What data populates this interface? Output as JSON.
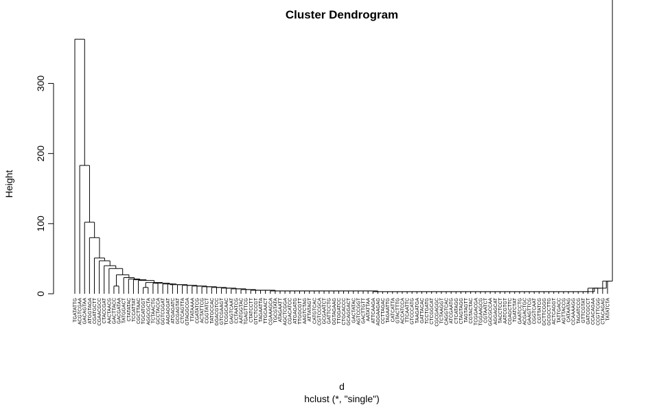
{
  "chart_data": {
    "type": "dendrogram",
    "title": "Cluster Dendrogram",
    "ylabel": "Height",
    "xlabel": "d",
    "sub": "hclust (*, \"single\")",
    "ylim": [
      0,
      370
    ],
    "yticks": [
      0,
      100,
      200,
      300
    ],
    "leaves": [
      "TGATATTG",
      "ACGTCGAA",
      "GACAGTAA",
      "ATGGTAGA",
      "CGATGCTT",
      "CGAACGCC",
      "CTACCGAT",
      "AACTAACG",
      "GACTTACC",
      "GACGATAA",
      "TATGGACT",
      "CTATATAC",
      "TCCATTAT",
      "CGCTTAAC",
      "TGCATGGT",
      "AGGCGCTA",
      "TCTAACTG",
      "GCCTACCA",
      "GGTCGGAT",
      "AAGAGGAT",
      "ATGAGATC",
      "GCGAGTAT",
      "CTCAGTTA",
      "GTAGGCGA",
      "TTATAAAA",
      "CGATATCG",
      "ACTATTCG",
      "CGGTATCT",
      "TATGCCAC",
      "GGACGTCC",
      "GTCGAAGT",
      "TCGGCAAC",
      "GAGTCAAT",
      "CCTAATCG",
      "AATGGTAC",
      "TGAGTTCG",
      "CTATCCTT",
      "GTCTCCGT",
      "TAGAATTA",
      "TTGCAACT",
      "CGAAAGCA",
      "TGCGTATA",
      "ATAGAATT",
      "AGCTCGGA",
      "CGACATCC",
      "ATGAGATG",
      "TTGGCGTT",
      "AAGTCTAG",
      "ATTATAGT",
      "CATGTCAC",
      "CGTCCGCA",
      "GCGAATCT",
      "GATTCCTG",
      "GGTAGAAG",
      "TTGGATCC",
      "CTGCACCC",
      "GCAGGACT",
      "GACTATAC",
      "AGTCCGGT",
      "GACTTGTT",
      "AATATTAA",
      "ATTCAAGA",
      "AGGAAGAG",
      "CCTTAGAC",
      "TAGAATTG",
      "CATCATTA",
      "GTACTTTG",
      "ACCATCCA",
      "TTCAATTC",
      "GTCCCATG",
      "TAAGATGA",
      "GATTACAC",
      "TCCTGATG",
      "CTCGGCAT",
      "CGCGAGGC",
      "TCTAAGGT",
      "CAGGTCAC",
      "ATCGAATG",
      "CTCATAGG",
      "CTAGTAGG",
      "TAGTAGTT",
      "CGTACTAC",
      "TCGGACGA",
      "TGGAAGCG",
      "CGTAATCT",
      "GGCGCCAA",
      "AGGAGCAT",
      "TACCTCCT",
      "AATCGTGT",
      "CGAGCTTC",
      "TGATCTAT",
      "GAATCCTG",
      "ACGACTGC",
      "GAAGTTCG",
      "CGGTCAAT",
      "CGTTATCG",
      "GCTTCGGG",
      "GCGCCTTG",
      "ACTCAGGT",
      "TATTGACC",
      "AGTTACCG",
      "CATAATAG",
      "CCAAAAGG",
      "TAGATCCG",
      "GTTCGTAT",
      "GATCGCCT",
      "CCACAGAA",
      "CCGTTCGG",
      "CTACAGAG",
      "TATATCTA"
    ],
    "merges": [
      {
        "a": 8,
        "b": 9,
        "h": 11
      },
      {
        "a": 14,
        "b": 15,
        "h": 9
      },
      {
        "a": 106,
        "b": 107,
        "h": 8
      },
      {
        "a": 109,
        "b": 110,
        "h": 18
      },
      {
        "a": 19,
        "b": 20,
        "h": 14
      },
      {
        "a": 16,
        "b": 17,
        "h": 15
      }
    ],
    "heights": [
      363,
      183,
      102,
      80,
      51,
      47,
      40,
      36,
      30,
      27,
      23,
      21,
      20,
      19,
      17,
      16,
      15,
      15,
      14,
      14,
      13,
      13,
      12,
      12,
      11,
      11,
      10,
      10,
      9,
      9,
      8,
      8,
      7,
      7,
      6,
      6,
      5,
      5,
      5,
      5,
      4,
      4,
      4,
      4,
      4,
      4,
      4,
      4,
      4,
      4,
      4,
      4,
      4,
      4,
      4,
      4,
      4,
      4,
      4,
      4,
      4,
      3,
      3,
      3,
      3,
      3,
      3,
      3,
      3,
      3,
      3,
      3,
      3,
      3,
      3,
      3,
      3,
      3,
      3,
      3,
      3,
      3,
      3,
      3,
      3,
      3,
      3,
      3,
      3,
      3,
      3,
      3,
      3,
      3,
      3,
      3,
      3,
      3,
      3,
      3,
      3,
      3,
      3,
      3,
      3,
      8,
      8,
      8,
      18
    ],
    "grid": false
  }
}
